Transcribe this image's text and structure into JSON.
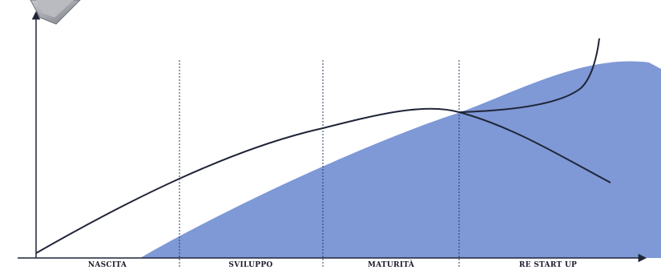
{
  "phases": [
    {
      "id": "nascita",
      "label": "NASCITA"
    },
    {
      "id": "sviluppo",
      "label": "SVILUPPO"
    },
    {
      "id": "maturita",
      "label": "MATURITÀ"
    },
    {
      "id": "restartup",
      "label": "RE START UP"
    }
  ],
  "colors": {
    "area_fill": "#7f98d6",
    "curve": "#1f2438",
    "axis": "#1f2438",
    "divider": "#2a3560",
    "corner_badge": "#9a9ca3"
  }
}
